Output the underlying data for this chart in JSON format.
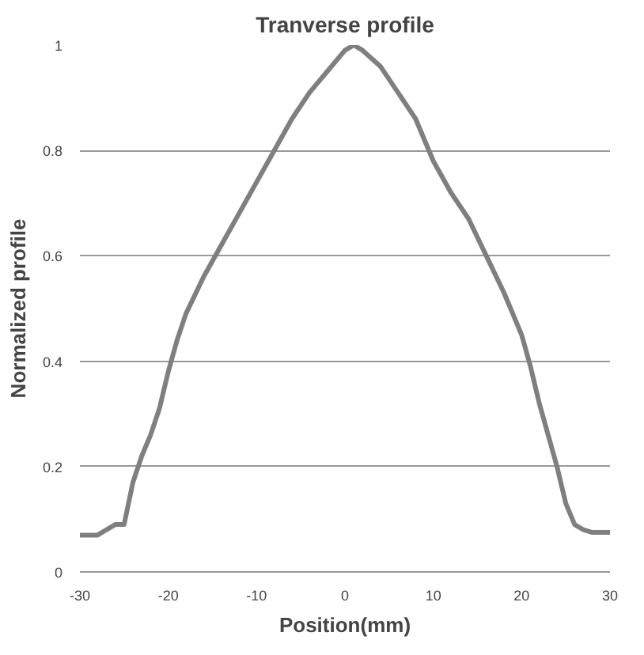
{
  "chart_data": {
    "type": "line",
    "title": "Tranverse profile",
    "xlabel": "Position(mm)",
    "ylabel": "Normalized profile",
    "x": [
      -30,
      -28,
      -27,
      -26,
      -25,
      -24,
      -23,
      -22,
      -21,
      -20,
      -19,
      -18,
      -16,
      -14,
      -12,
      -10,
      -8,
      -6,
      -4,
      -2,
      0,
      1,
      2,
      4,
      6,
      8,
      10,
      12,
      14,
      16,
      18,
      19,
      20,
      21,
      22,
      23,
      24,
      25,
      26,
      27,
      28,
      30
    ],
    "series": [
      {
        "color": "#7f7f7f",
        "values": [
          0.07,
          0.07,
          0.08,
          0.09,
          0.09,
          0.17,
          0.22,
          0.26,
          0.31,
          0.38,
          0.44,
          0.49,
          0.56,
          0.62,
          0.68,
          0.74,
          0.8,
          0.86,
          0.91,
          0.95,
          0.99,
          1.0,
          0.99,
          0.96,
          0.91,
          0.86,
          0.78,
          0.72,
          0.67,
          0.6,
          0.53,
          0.49,
          0.45,
          0.39,
          0.32,
          0.26,
          0.2,
          0.13,
          0.09,
          0.08,
          0.075,
          0.075
        ]
      }
    ],
    "xlim": [
      -30,
      30
    ],
    "xticks": [
      -30,
      -20,
      -10,
      0,
      10,
      20,
      30
    ],
    "ylim": [
      0,
      1
    ],
    "yticks": [
      0,
      0.2,
      0.4,
      0.6,
      0.8,
      1
    ],
    "grid": "y",
    "marker": "none",
    "line_style": "solid"
  }
}
